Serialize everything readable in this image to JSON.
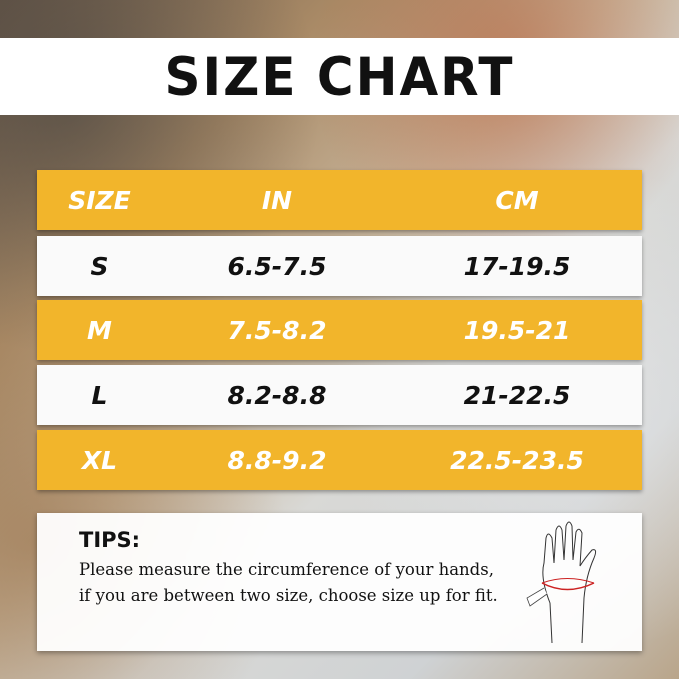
{
  "title": "SIZE CHART",
  "table": {
    "headers": [
      "SIZE",
      "IN",
      "CM"
    ],
    "rows": [
      [
        "S",
        "6.5-7.5",
        "17-19.5"
      ],
      [
        "M",
        "7.5-8.2",
        "19.5-21"
      ],
      [
        "L",
        "8.2-8.8",
        "21-22.5"
      ],
      [
        "XL",
        "8.8-9.2",
        "22.5-23.5"
      ]
    ]
  },
  "tips": {
    "heading": "TIPS:",
    "text": "Please measure the circumference of your hands, if you are between two size, choose size up for fit.",
    "icon": "hand-measure-icon"
  },
  "colors": {
    "accent": "#F2B52B",
    "row_light": "#fafafa"
  }
}
